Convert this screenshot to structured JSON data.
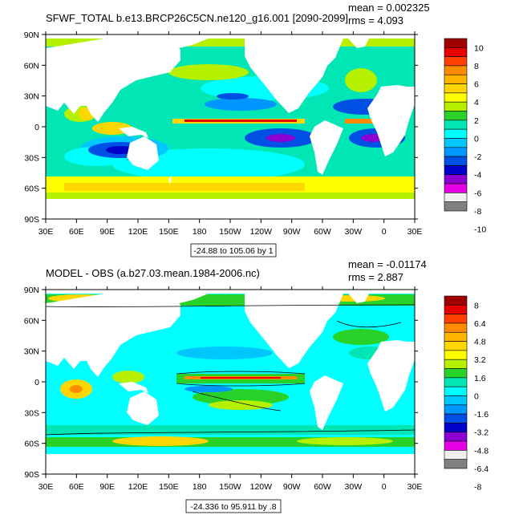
{
  "chart_data": [
    {
      "type": "heatmap",
      "title": "SFWF_TOTAL b.e13.BRCP26C5CN.ne120_g16.001 [2090-2099]",
      "stats": {
        "mean_label": "mean = 0.002325",
        "rms_label": "rms = 4.093"
      },
      "range_label": "-24.88 to 105.06 by 1",
      "x_tick_labels": [
        "30E",
        "60E",
        "90E",
        "120E",
        "150E",
        "180",
        "150W",
        "120W",
        "90W",
        "60W",
        "30W",
        "0",
        "30E"
      ],
      "y_tick_labels": [
        "90N",
        "60N",
        "30N",
        "0",
        "30S",
        "60S",
        "90S"
      ],
      "colorbar": {
        "labels": [
          "10",
          "8",
          "6",
          "4",
          "2",
          "0",
          "-2",
          "-4",
          "-6",
          "-8",
          "-10"
        ],
        "colors": [
          "#a00000",
          "#e60000",
          "#ff4000",
          "#ff8c00",
          "#ffb400",
          "#ffd700",
          "#ffff00",
          "#b4f000",
          "#28d228",
          "#00e6b4",
          "#00ffff",
          "#00c8ff",
          "#0096ff",
          "#0050e6",
          "#0000c8",
          "#8c00d2",
          "#e600e6",
          "#f0f0f0",
          "#808080"
        ]
      }
    },
    {
      "type": "heatmap",
      "title": "MODEL - OBS (a.b27.03.mean.1984-2006.nc)",
      "stats": {
        "mean_label": "mean = -0.01174",
        "rms_label": "rms = 2.887"
      },
      "range_label": "-24.336 to 95.911 by .8",
      "x_tick_labels": [
        "30E",
        "60E",
        "90E",
        "120E",
        "150E",
        "180",
        "150W",
        "120W",
        "90W",
        "60W",
        "30W",
        "0",
        "30E"
      ],
      "y_tick_labels": [
        "90N",
        "60N",
        "30N",
        "0",
        "30S",
        "60S",
        "90S"
      ],
      "colorbar": {
        "labels": [
          "8",
          "6.4",
          "4.8",
          "3.2",
          "1.6",
          "0",
          "-1.6",
          "-3.2",
          "-4.8",
          "-6.4",
          "-8"
        ],
        "colors": [
          "#a00000",
          "#e60000",
          "#ff4000",
          "#ff8c00",
          "#ffb400",
          "#ffd700",
          "#ffff00",
          "#b4f000",
          "#28d228",
          "#00e6b4",
          "#00ffff",
          "#00c8ff",
          "#0096ff",
          "#0050e6",
          "#0000c8",
          "#8c00d2",
          "#e600e6",
          "#f0f0f0",
          "#808080"
        ]
      }
    }
  ]
}
